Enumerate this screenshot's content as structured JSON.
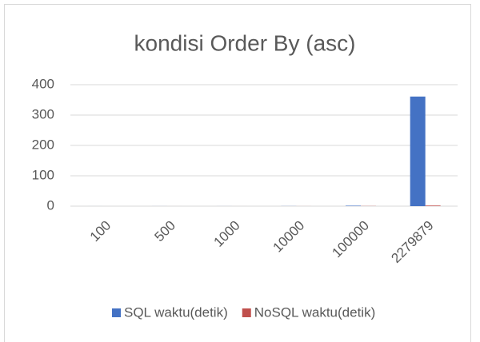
{
  "chart_data": {
    "type": "bar",
    "title": "kondisi Order By (asc)",
    "categories": [
      "100",
      "500",
      "1000",
      "10000",
      "100000",
      "2279879"
    ],
    "series": [
      {
        "name": "SQL waktu(detik)",
        "color": "#4472c4",
        "values": [
          0.05,
          0.1,
          0.1,
          0.3,
          1.5,
          361
        ]
      },
      {
        "name": "NoSQL waktu(detik)",
        "color": "#c0504d",
        "values": [
          0.02,
          0.03,
          0.05,
          0.1,
          0.5,
          2
        ]
      }
    ],
    "ylim": [
      0,
      400
    ],
    "yticks": [
      0,
      100,
      200,
      300,
      400
    ],
    "grid": true,
    "legend": "bottom"
  }
}
